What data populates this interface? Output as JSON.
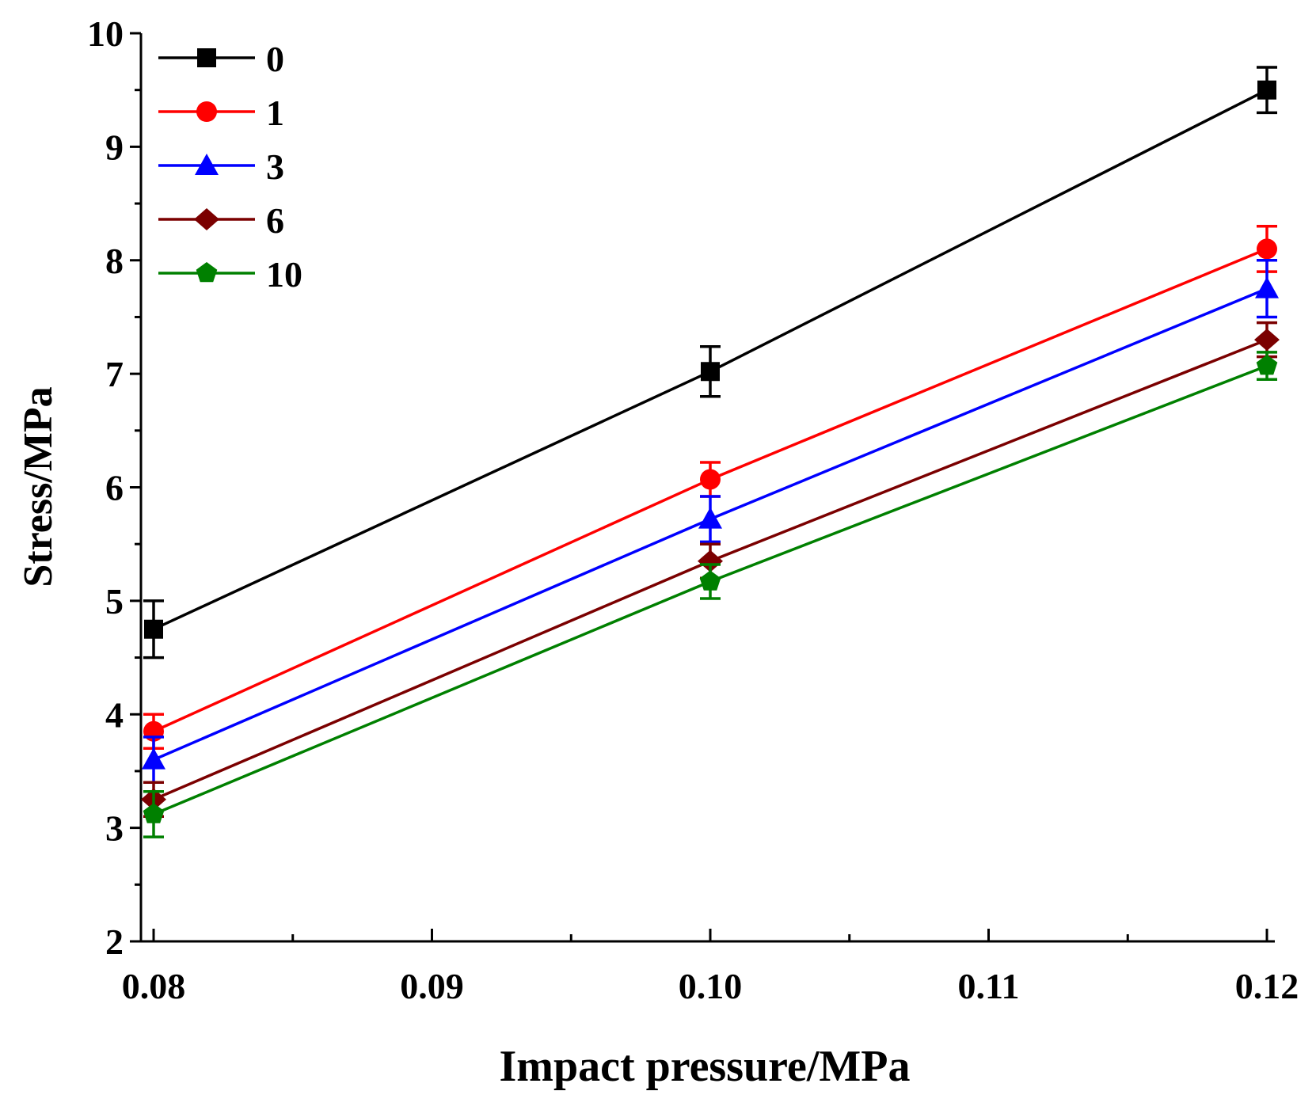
{
  "chart_data": {
    "type": "line",
    "title": "",
    "xlabel": "Impact pressure/MPa",
    "ylabel": "Stress/MPa",
    "xlim": [
      0.08,
      0.12
    ],
    "ylim": [
      2,
      10
    ],
    "x": [
      0.08,
      0.1,
      0.12
    ],
    "xticks": [
      "0.08",
      "0.09",
      "0.10",
      "0.11",
      "0.12"
    ],
    "xtick_values": [
      0.08,
      0.09,
      0.1,
      0.11,
      0.12
    ],
    "yticks": [
      "2",
      "3",
      "4",
      "5",
      "6",
      "7",
      "8",
      "9",
      "10"
    ],
    "ytick_values": [
      2,
      3,
      4,
      5,
      6,
      7,
      8,
      9,
      10
    ],
    "grid": false,
    "legend_position": "top-left",
    "series": [
      {
        "name": "0",
        "color": "#000000",
        "marker": "square",
        "values": [
          4.75,
          7.02,
          9.5
        ],
        "errors": [
          0.25,
          0.22,
          0.2
        ]
      },
      {
        "name": "1",
        "color": "#ff0000",
        "marker": "circle",
        "values": [
          3.85,
          6.07,
          8.1
        ],
        "errors": [
          0.15,
          0.15,
          0.2
        ]
      },
      {
        "name": "3",
        "color": "#0000ff",
        "marker": "triangle",
        "values": [
          3.6,
          5.72,
          7.75
        ],
        "errors": [
          0.2,
          0.2,
          0.25
        ]
      },
      {
        "name": "6",
        "color": "#7b0000",
        "marker": "diamond",
        "values": [
          3.25,
          5.35,
          7.3
        ],
        "errors": [
          0.15,
          0.15,
          0.15
        ]
      },
      {
        "name": "10",
        "color": "#008000",
        "marker": "pentagon",
        "values": [
          3.12,
          5.17,
          7.07
        ],
        "errors": [
          0.2,
          0.15,
          0.12
        ]
      }
    ]
  }
}
